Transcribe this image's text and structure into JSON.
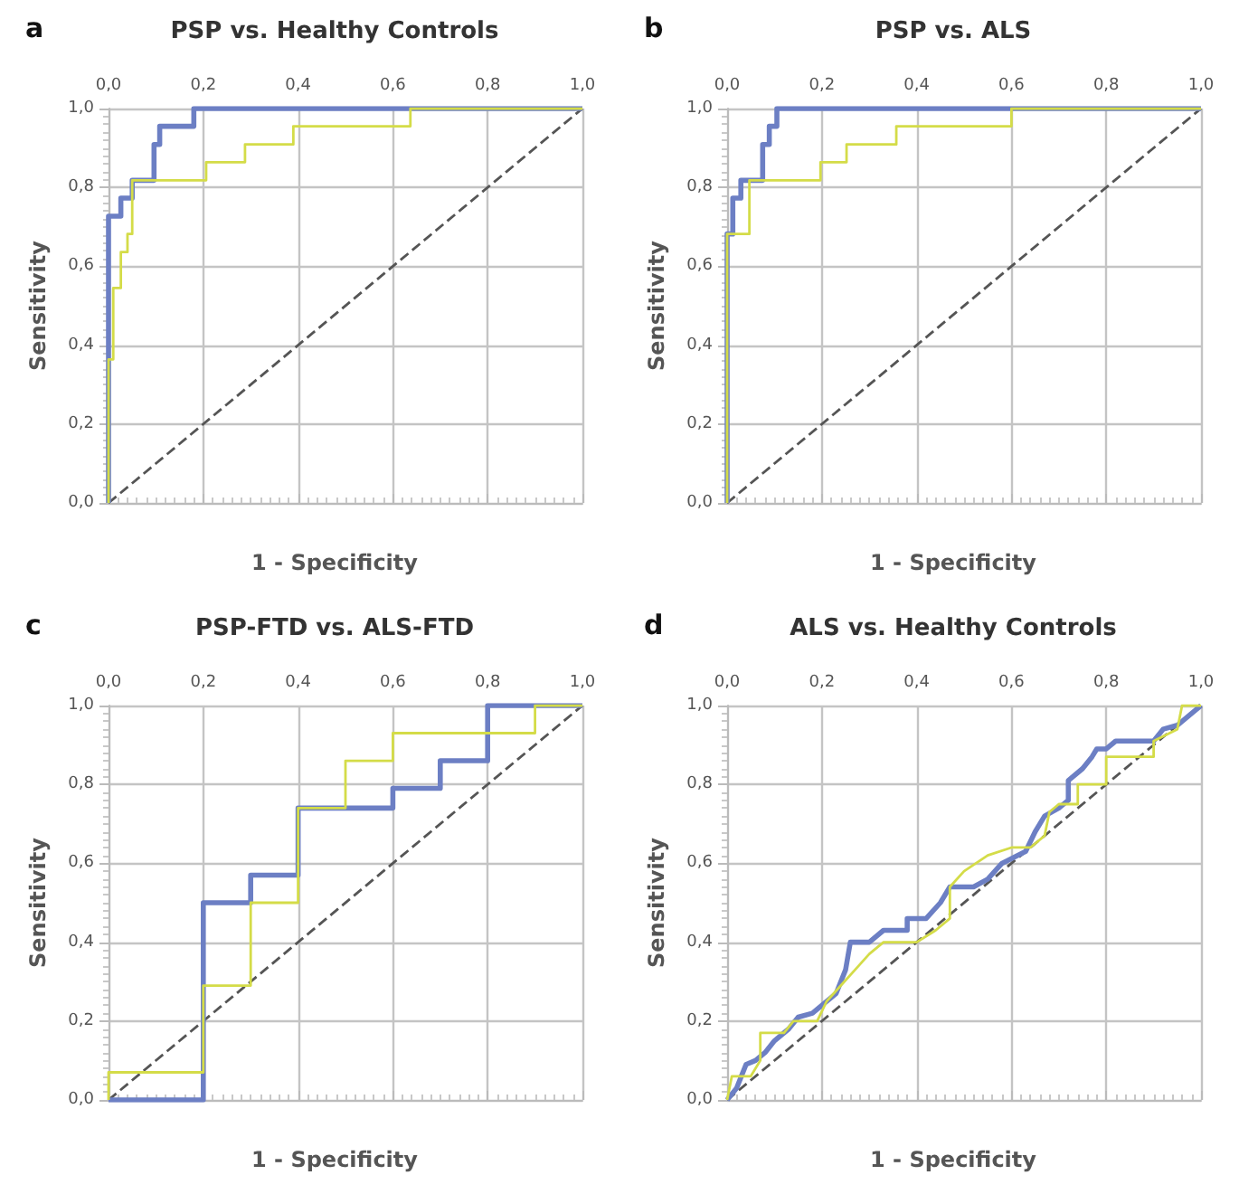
{
  "chart_data": [
    {
      "type": "line",
      "title": "PSP vs. Healthy Controls",
      "xlabel": "1 - Specificity",
      "ylabel": "Sensitivity",
      "annotations": [
        "a"
      ],
      "xlim": [
        0,
        1
      ],
      "ylim": [
        0,
        1
      ],
      "xticks": [
        {
          "value": 0,
          "label": "0,0"
        },
        {
          "value": 0.2,
          "label": "0,2"
        },
        {
          "value": 0.4,
          "label": "0,4"
        },
        {
          "value": 0.6,
          "label": "0,6"
        },
        {
          "value": 0.8,
          "label": "0,8"
        },
        {
          "value": 1,
          "label": "1,0"
        }
      ],
      "yticks": [
        {
          "value": 0,
          "label": "0,0"
        },
        {
          "value": 0.2,
          "label": "0,2"
        },
        {
          "value": 0.4,
          "label": "0,4"
        },
        {
          "value": 0.6,
          "label": "0,6"
        },
        {
          "value": 0.8,
          "label": "0,8"
        },
        {
          "value": 1,
          "label": "1,0"
        }
      ],
      "grid": true,
      "marker": "none",
      "series": [
        {
          "color": "#6c7fc4",
          "x": [
            0,
            0,
            0.026,
            0.026,
            0.05,
            0.05,
            0.096,
            0.096,
            0.108,
            0.108,
            0.18,
            0.18,
            1
          ],
          "values": [
            0,
            0.727,
            0.727,
            0.773,
            0.773,
            0.818,
            0.818,
            0.909,
            0.909,
            0.955,
            0.955,
            1,
            1
          ]
        },
        {
          "color": "#d4dc48",
          "x": [
            0,
            0,
            0.01,
            0.01,
            0.026,
            0.026,
            0.04,
            0.04,
            0.05,
            0.05,
            0.206,
            0.206,
            0.288,
            0.288,
            0.39,
            0.39,
            0.637,
            0.637,
            1
          ],
          "values": [
            0,
            0.364,
            0.364,
            0.545,
            0.545,
            0.636,
            0.636,
            0.682,
            0.682,
            0.818,
            0.818,
            0.864,
            0.864,
            0.909,
            0.909,
            0.955,
            0.955,
            1,
            1
          ]
        },
        {
          "color": "#555555",
          "line_style": "dashed",
          "x": [
            0,
            1
          ],
          "values": [
            0,
            1
          ]
        }
      ]
    },
    {
      "type": "line",
      "title": "PSP vs. ALS",
      "xlabel": "1 - Specificity",
      "ylabel": "Sensitivity",
      "annotations": [
        "b"
      ],
      "xlim": [
        0,
        1
      ],
      "ylim": [
        0,
        1
      ],
      "xticks": [
        {
          "value": 0,
          "label": "0,0"
        },
        {
          "value": 0.2,
          "label": "0,2"
        },
        {
          "value": 0.4,
          "label": "0,4"
        },
        {
          "value": 0.6,
          "label": "0,6"
        },
        {
          "value": 0.8,
          "label": "0,8"
        },
        {
          "value": 1,
          "label": "1,0"
        }
      ],
      "yticks": [
        {
          "value": 0,
          "label": "0,0"
        },
        {
          "value": 0.2,
          "label": "0,2"
        },
        {
          "value": 0.4,
          "label": "0,4"
        },
        {
          "value": 0.6,
          "label": "0,6"
        },
        {
          "value": 0.8,
          "label": "0,8"
        },
        {
          "value": 1,
          "label": "1,0"
        }
      ],
      "grid": true,
      "marker": "none",
      "series": [
        {
          "color": "#6c7fc4",
          "x": [
            0,
            0,
            0.012,
            0.012,
            0.029,
            0.029,
            0.075,
            0.075,
            0.089,
            0.089,
            0.105,
            0.105,
            1
          ],
          "values": [
            0,
            0.682,
            0.682,
            0.773,
            0.773,
            0.818,
            0.818,
            0.909,
            0.909,
            0.955,
            0.955,
            1,
            1
          ]
        },
        {
          "color": "#d4dc48",
          "x": [
            0,
            0,
            0.047,
            0.047,
            0.197,
            0.197,
            0.252,
            0.252,
            0.357,
            0.357,
            0.6,
            0.6,
            1
          ],
          "values": [
            0,
            0.682,
            0.682,
            0.818,
            0.818,
            0.864,
            0.864,
            0.909,
            0.909,
            0.955,
            0.955,
            1,
            1
          ]
        },
        {
          "color": "#555555",
          "line_style": "dashed",
          "x": [
            0,
            1
          ],
          "values": [
            0,
            1
          ]
        }
      ]
    },
    {
      "type": "line",
      "title": "PSP-FTD vs. ALS-FTD",
      "xlabel": "1 - Specificity",
      "ylabel": "Sensitivity",
      "annotations": [
        "c"
      ],
      "xlim": [
        0,
        1
      ],
      "ylim": [
        0,
        1
      ],
      "xticks": [
        {
          "value": 0,
          "label": "0,0"
        },
        {
          "value": 0.2,
          "label": "0,2"
        },
        {
          "value": 0.4,
          "label": "0,4"
        },
        {
          "value": 0.6,
          "label": "0,6"
        },
        {
          "value": 0.8,
          "label": "0,8"
        },
        {
          "value": 1,
          "label": "1,0"
        }
      ],
      "yticks": [
        {
          "value": 0,
          "label": "0,0"
        },
        {
          "value": 0.2,
          "label": "0,2"
        },
        {
          "value": 0.4,
          "label": "0,4"
        },
        {
          "value": 0.6,
          "label": "0,6"
        },
        {
          "value": 0.8,
          "label": "0,8"
        },
        {
          "value": 1,
          "label": "1,0"
        }
      ],
      "grid": true,
      "marker": "none",
      "series": [
        {
          "color": "#6c7fc4",
          "x": [
            0,
            0.2,
            0.2,
            0.3,
            0.3,
            0.4,
            0.4,
            0.6,
            0.6,
            0.7,
            0.7,
            0.8,
            0.8,
            1
          ],
          "values": [
            0,
            0,
            0.5,
            0.5,
            0.57,
            0.57,
            0.74,
            0.74,
            0.79,
            0.79,
            0.86,
            0.86,
            1,
            1
          ]
        },
        {
          "color": "#d4dc48",
          "x": [
            0,
            0,
            0.2,
            0.2,
            0.3,
            0.3,
            0.4,
            0.4,
            0.5,
            0.5,
            0.6,
            0.6,
            0.9,
            0.9,
            1
          ],
          "values": [
            0,
            0.07,
            0.07,
            0.29,
            0.29,
            0.5,
            0.5,
            0.74,
            0.74,
            0.86,
            0.86,
            0.93,
            0.93,
            1,
            1
          ]
        },
        {
          "color": "#555555",
          "line_style": "dashed",
          "x": [
            0,
            1
          ],
          "values": [
            0,
            1
          ]
        }
      ]
    },
    {
      "type": "line",
      "title": "ALS vs. Healthy Controls",
      "xlabel": "1 - Specificity",
      "ylabel": "Sensitivity",
      "annotations": [
        "d"
      ],
      "xlim": [
        0,
        1
      ],
      "ylim": [
        0,
        1
      ],
      "xticks": [
        {
          "value": 0,
          "label": "0,0"
        },
        {
          "value": 0.2,
          "label": "0,2"
        },
        {
          "value": 0.4,
          "label": "0,4"
        },
        {
          "value": 0.6,
          "label": "0,6"
        },
        {
          "value": 0.8,
          "label": "0,8"
        },
        {
          "value": 1,
          "label": "1,0"
        }
      ],
      "yticks": [
        {
          "value": 0,
          "label": "0,0"
        },
        {
          "value": 0.2,
          "label": "0,2"
        },
        {
          "value": 0.4,
          "label": "0,4"
        },
        {
          "value": 0.6,
          "label": "0,6"
        },
        {
          "value": 0.8,
          "label": "0,8"
        },
        {
          "value": 1,
          "label": "1,0"
        }
      ],
      "grid": true,
      "marker": "none",
      "series": [
        {
          "color": "#6c7fc4",
          "x": [
            0,
            0.02,
            0.03,
            0.04,
            0.06,
            0.08,
            0.1,
            0.13,
            0.15,
            0.18,
            0.2,
            0.23,
            0.25,
            0.26,
            0.3,
            0.33,
            0.38,
            0.38,
            0.42,
            0.45,
            0.47,
            0.52,
            0.55,
            0.58,
            0.63,
            0.65,
            0.67,
            0.7,
            0.72,
            0.72,
            0.75,
            0.77,
            0.78,
            0.8,
            0.82,
            0.9,
            0.92,
            0.95,
            0.97,
            0.99,
            1
          ],
          "values": [
            0,
            0.03,
            0.06,
            0.09,
            0.1,
            0.12,
            0.15,
            0.18,
            0.21,
            0.22,
            0.24,
            0.27,
            0.33,
            0.4,
            0.4,
            0.43,
            0.43,
            0.46,
            0.46,
            0.5,
            0.54,
            0.54,
            0.56,
            0.6,
            0.63,
            0.68,
            0.72,
            0.74,
            0.76,
            0.81,
            0.84,
            0.87,
            0.89,
            0.89,
            0.91,
            0.91,
            0.94,
            0.95,
            0.97,
            0.99,
            1
          ]
        },
        {
          "color": "#d4dc48",
          "x": [
            0,
            0.01,
            0.05,
            0.07,
            0.07,
            0.12,
            0.14,
            0.19,
            0.21,
            0.24,
            0.27,
            0.3,
            0.33,
            0.4,
            0.44,
            0.47,
            0.47,
            0.5,
            0.55,
            0.6,
            0.64,
            0.67,
            0.68,
            0.7,
            0.74,
            0.74,
            0.8,
            0.8,
            0.9,
            0.9,
            0.95,
            0.96,
            1
          ],
          "values": [
            0,
            0.06,
            0.06,
            0.1,
            0.17,
            0.17,
            0.2,
            0.2,
            0.25,
            0.29,
            0.33,
            0.37,
            0.4,
            0.4,
            0.43,
            0.46,
            0.54,
            0.58,
            0.62,
            0.64,
            0.64,
            0.67,
            0.73,
            0.75,
            0.75,
            0.8,
            0.8,
            0.87,
            0.87,
            0.91,
            0.94,
            1,
            1
          ]
        },
        {
          "color": "#555555",
          "line_style": "dashed",
          "x": [
            0,
            1
          ],
          "values": [
            0,
            1
          ]
        }
      ]
    }
  ]
}
